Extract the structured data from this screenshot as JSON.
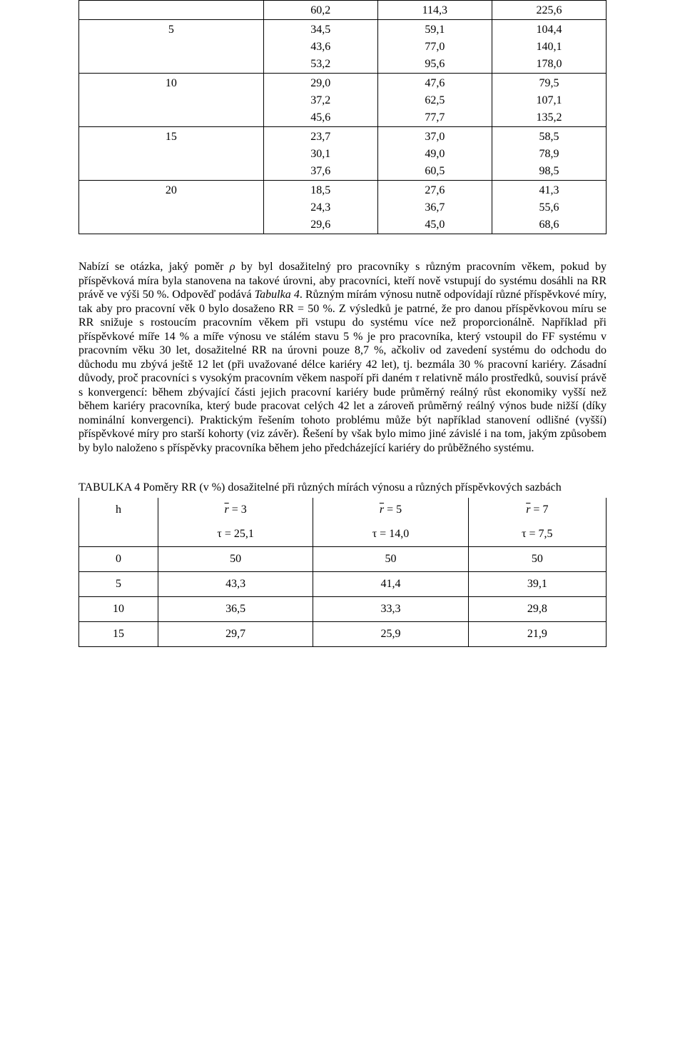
{
  "table1": {
    "rows": [
      {
        "label": "",
        "cells": [
          [
            "60,2",
            "114,3",
            "225,6"
          ]
        ]
      },
      {
        "label": "5",
        "cells": [
          [
            "34,5",
            "59,1",
            "104,4"
          ],
          [
            "43,6",
            "77,0",
            "140,1"
          ],
          [
            "53,2",
            "95,6",
            "178,0"
          ]
        ]
      },
      {
        "label": "10",
        "cells": [
          [
            "29,0",
            "47,6",
            "79,5"
          ],
          [
            "37,2",
            "62,5",
            "107,1"
          ],
          [
            "45,6",
            "77,7",
            "135,2"
          ]
        ]
      },
      {
        "label": "15",
        "cells": [
          [
            "23,7",
            "37,0",
            "58,5"
          ],
          [
            "30,1",
            "49,0",
            "78,9"
          ],
          [
            "37,6",
            "60,5",
            "98,5"
          ]
        ]
      },
      {
        "label": "20",
        "cells": [
          [
            "18,5",
            "27,6",
            "41,3"
          ],
          [
            "24,3",
            "36,7",
            "55,6"
          ],
          [
            "29,6",
            "45,0",
            "68,6"
          ]
        ]
      }
    ]
  },
  "paragraph": {
    "t0": "Nabízí se otázka, jaký poměr ",
    "rho": "ρ",
    "t1": " by byl dosažitelný pro pracovníky s různým pracovním věkem, pokud by příspěvková míra byla stanovena na takové úrovni, aby pracovníci, kteří nově vstupují do systému dosáhli na RR právě ve výši 50 %. Odpověď podává ",
    "tabref": "Tabulka 4",
    "t2": ". Různým mírám výnosu nutně odpovídají různé příspěvkové míry, tak aby pro pracovní věk 0 bylo dosaženo RR = 50 %. Z výsledků je patrné, že pro danou příspěvkovou míru se RR snižuje s rostoucím pracovním věkem při vstupu do systému více než proporcionálně. Například při příspěvkové míře 14 % a míře výnosu ve stálém stavu 5 % je pro pracovníka, který vstoupil do FF systému v pracovním věku 30 let, dosažitelné RR na úrovni pouze 8,7 %, ačkoliv od zavedení systému do odchodu do důchodu mu zbývá ještě 12 let (při uvažované délce kariéry 42 let), tj. bezmála 30 % pracovní kariéry. Zásadní důvody, proč pracovníci s vysokým pracovním věkem naspoří při daném ",
    "tau": "τ",
    "t3": " relativně málo prostředků, souvisí právě s konvergencí: během zbývající části jejich pracovní kariéry bude průměrný reálný růst ekonomiky vyšší než během kariéry pracovníka, který bude pracovat celých 42 let a zároveň průměrný reálný výnos bude nižší (díky nominální konvergenci). Praktickým řešením tohoto problému může být například stanovení odlišné (vyšší) příspěvkové míry pro starší kohorty (viz závěr). Řešení by však bylo mimo jiné závislé i na tom, jakým způsobem by bylo naloženo s příspěvky pracovníka během jeho předcházející kariéry do průběžného systému."
  },
  "table4": {
    "caption": "TABULKA 4   Poměry RR (v %) dosažitelné při různých mírách výnosu a různých příspěvkových sazbách",
    "header": {
      "h_label": "h",
      "r_prefix": "r",
      "eq": " = ",
      "r_vals": [
        "3",
        "5",
        "7"
      ],
      "tau_prefix": "τ = ",
      "tau_vals": [
        "25,1",
        "14,0",
        "7,5"
      ]
    },
    "rows": [
      {
        "h": "0",
        "v": [
          "50",
          "50",
          "50"
        ]
      },
      {
        "h": "5",
        "v": [
          "43,3",
          "41,4",
          "39,1"
        ]
      },
      {
        "h": "10",
        "v": [
          "36,5",
          "33,3",
          "29,8"
        ]
      },
      {
        "h": "15",
        "v": [
          "29,7",
          "25,9",
          "21,9"
        ]
      }
    ]
  }
}
